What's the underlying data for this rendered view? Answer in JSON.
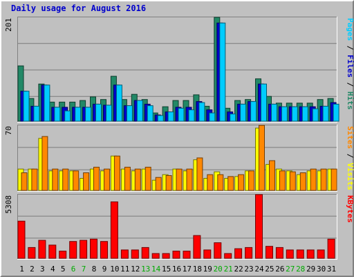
{
  "title": "Daily usage for August 2016",
  "chart_data": [
    {
      "type": "bar",
      "name": "hits-files-pages",
      "categories": [
        "1",
        "2",
        "3",
        "4",
        "5",
        "6",
        "7",
        "8",
        "9",
        "10",
        "11",
        "12",
        "13",
        "14",
        "15",
        "16",
        "17",
        "18",
        "19",
        "20",
        "21",
        "22",
        "23",
        "24",
        "25",
        "26",
        "27",
        "28",
        "29",
        "30",
        "31"
      ],
      "weekend_days": [
        "6",
        "7",
        "13",
        "14",
        "20",
        "21",
        "27",
        "28"
      ],
      "ymax_label": "201",
      "ylim": [
        0,
        201
      ],
      "label_parts": [
        {
          "text": "Pages",
          "color": "#00ccff"
        },
        {
          "text": " / ",
          "color": "#000000"
        },
        {
          "text": "Files",
          "color": "#0000cc"
        },
        {
          "text": " / ",
          "color": "#000000"
        },
        {
          "text": "Hits",
          "color": "#228866"
        }
      ],
      "series": [
        {
          "name": "Hits",
          "color": "#228866",
          "values": [
            107,
            44,
            72,
            37,
            37,
            37,
            40,
            47,
            42,
            87,
            42,
            52,
            42,
            16,
            28,
            40,
            40,
            51,
            29,
            201,
            25,
            40,
            42,
            82,
            48,
            35,
            35,
            35,
            35,
            42,
            44
          ]
        },
        {
          "name": "Files",
          "color": "#0000cc",
          "values": [
            58,
            29,
            70,
            27,
            27,
            27,
            27,
            33,
            31,
            70,
            30,
            40,
            33,
            12,
            18,
            27,
            27,
            38,
            22,
            190,
            18,
            33,
            38,
            72,
            33,
            28,
            28,
            28,
            28,
            29,
            36
          ]
        },
        {
          "name": "Pages",
          "color": "#00ccff",
          "values": [
            58,
            29,
            70,
            27,
            20,
            27,
            27,
            33,
            31,
            70,
            30,
            40,
            30,
            11,
            18,
            25,
            22,
            36,
            16,
            190,
            14,
            33,
            38,
            72,
            33,
            28,
            28,
            28,
            24,
            29,
            33
          ]
        }
      ]
    },
    {
      "type": "bar",
      "name": "visits-sites",
      "ymax_label": "70",
      "ylim": [
        0,
        70
      ],
      "label_parts": [
        {
          "text": "Sites",
          "color": "#ff8800"
        },
        {
          "text": " / ",
          "color": "#000000"
        },
        {
          "text": "Visits",
          "color": "#ffff00"
        }
      ],
      "series": [
        {
          "name": "Visits",
          "color": "#ffff00",
          "values": [
            23,
            23,
            56,
            21,
            21,
            21,
            13,
            23,
            21,
            37,
            23,
            21,
            23,
            11,
            17,
            23,
            21,
            33,
            13,
            20,
            13,
            15,
            21,
            67,
            28,
            23,
            21,
            17,
            21,
            21,
            23
          ]
        },
        {
          "name": "Sites",
          "color": "#ff8800",
          "values": [
            19,
            23,
            58,
            23,
            23,
            21,
            19,
            25,
            23,
            37,
            25,
            23,
            25,
            14,
            16,
            23,
            23,
            35,
            17,
            17,
            15,
            17,
            21,
            70,
            32,
            21,
            20,
            19,
            23,
            23,
            23
          ]
        }
      ]
    },
    {
      "type": "bar",
      "name": "kbytes",
      "ymax_label": "5308",
      "ylim": [
        0,
        5308
      ],
      "label_parts": [
        {
          "text": "KBytes",
          "color": "#ff0000"
        }
      ],
      "series": [
        {
          "name": "KBytes",
          "color": "#ff0000",
          "values": [
            3100,
            900,
            1500,
            1100,
            600,
            1400,
            1500,
            1600,
            1400,
            4700,
            700,
            700,
            900,
            400,
            400,
            600,
            600,
            1900,
            700,
            1300,
            400,
            800,
            900,
            5308,
            1000,
            900,
            700,
            700,
            700,
            700,
            1600
          ]
        }
      ]
    }
  ]
}
